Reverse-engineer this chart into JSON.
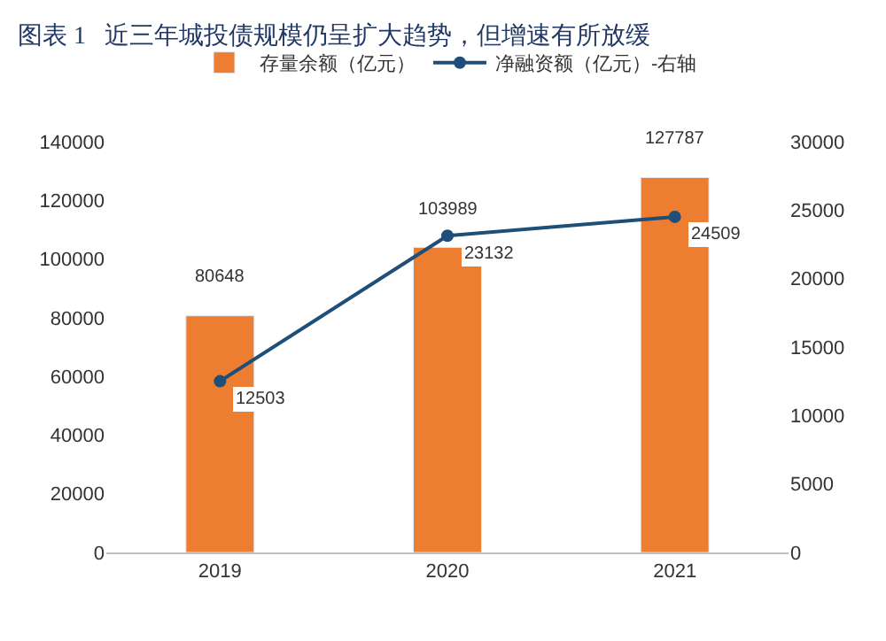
{
  "chart_data": {
    "type": "bar",
    "title": "图表 1   近三年城投债规模仍呈扩大趋势，但增速有所放缓",
    "categories": [
      "2019",
      "2020",
      "2021"
    ],
    "series": [
      {
        "name": "存量余额（亿元）",
        "color": "#ed7d31",
        "values": [
          80648,
          103989,
          127787
        ]
      },
      {
        "name": "净融资额（亿元）-右轴",
        "type": "line",
        "axis": "y2",
        "color": "#1f4e79",
        "marker": "circle",
        "values": [
          12503,
          23132,
          24509
        ]
      }
    ],
    "ylim": [
      0,
      140000
    ],
    "yticks": [
      0,
      20000,
      40000,
      60000,
      80000,
      100000,
      120000,
      140000
    ],
    "y2lim": [
      0,
      30000
    ],
    "y2ticks": [
      0,
      5000,
      10000,
      15000,
      20000,
      25000,
      30000
    ],
    "data_labels": true,
    "legend": "top"
  }
}
